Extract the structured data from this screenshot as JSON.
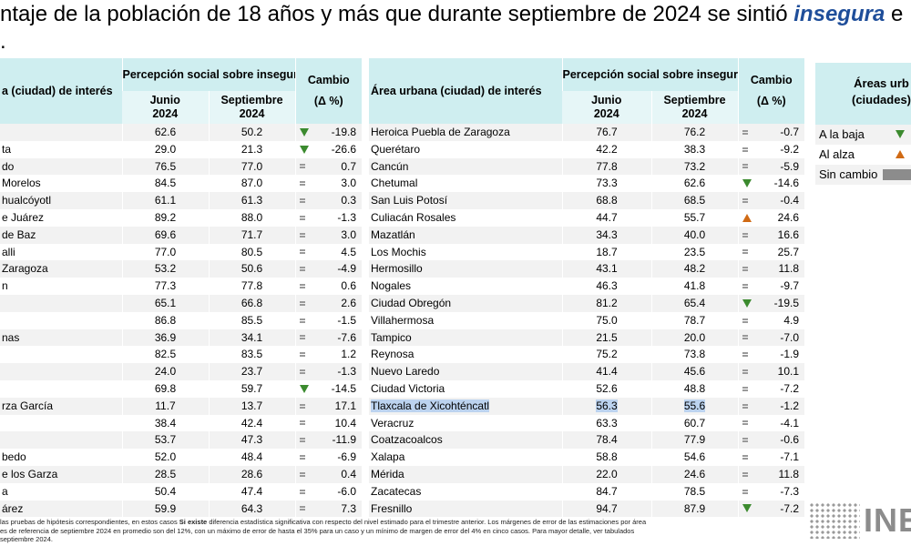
{
  "title": {
    "line1_pre": "ntaje de la población de 18 años y más que durante septiembre de 2024 se sintió ",
    "line1_em": "insegura",
    "line1_post": " e",
    "line2": "."
  },
  "headers": {
    "city_left": "a (ciudad) de interés",
    "city_right": "Área urbana (ciudad) de interés",
    "perception": "Percepción social sobre inseguridad pública",
    "junio": "Junio",
    "septiembre": "Septiembre",
    "year": "2024",
    "change": "Cambio",
    "delta": "(Δ %)"
  },
  "rows": [
    {
      "l_city": "",
      "l_jun": "62.6",
      "l_sep": "50.2",
      "l_ind": "down",
      "l_chg": "-19.8",
      "r_city": "Heroica Puebla de Zaragoza",
      "r_jun": "76.7",
      "r_sep": "76.2",
      "r_ind": "eq",
      "r_chg": "-0.7"
    },
    {
      "l_city": "ta",
      "l_jun": "29.0",
      "l_sep": "21.3",
      "l_ind": "down",
      "l_chg": "-26.6",
      "r_city": "Querétaro",
      "r_jun": "42.2",
      "r_sep": "38.3",
      "r_ind": "eq",
      "r_chg": "-9.2"
    },
    {
      "l_city": "do",
      "l_jun": "76.5",
      "l_sep": "77.0",
      "l_ind": "eq",
      "l_chg": "0.7",
      "r_city": "Cancún",
      "r_jun": "77.8",
      "r_sep": "73.2",
      "r_ind": "eq",
      "r_chg": "-5.9"
    },
    {
      "l_city": "Morelos",
      "l_jun": "84.5",
      "l_sep": "87.0",
      "l_ind": "eq",
      "l_chg": "3.0",
      "r_city": "Chetumal",
      "r_jun": "73.3",
      "r_sep": "62.6",
      "r_ind": "down",
      "r_chg": "-14.6"
    },
    {
      "l_city": "hualcóyotl",
      "l_jun": "61.1",
      "l_sep": "61.3",
      "l_ind": "eq",
      "l_chg": "0.3",
      "r_city": "San Luis Potosí",
      "r_jun": "68.8",
      "r_sep": "68.5",
      "r_ind": "eq",
      "r_chg": "-0.4"
    },
    {
      "l_city": "e Juárez",
      "l_jun": "89.2",
      "l_sep": "88.0",
      "l_ind": "eq",
      "l_chg": "-1.3",
      "r_city": "Culiacán Rosales",
      "r_jun": "44.7",
      "r_sep": "55.7",
      "r_ind": "up",
      "r_chg": "24.6"
    },
    {
      "l_city": "de Baz",
      "l_jun": "69.6",
      "l_sep": "71.7",
      "l_ind": "eq",
      "l_chg": "3.0",
      "r_city": "Mazatlán",
      "r_jun": "34.3",
      "r_sep": "40.0",
      "r_ind": "eq",
      "r_chg": "16.6"
    },
    {
      "l_city": "alli",
      "l_jun": "77.0",
      "l_sep": "80.5",
      "l_ind": "eq",
      "l_chg": "4.5",
      "r_city": "Los Mochis",
      "r_jun": "18.7",
      "r_sep": "23.5",
      "r_ind": "eq",
      "r_chg": "25.7"
    },
    {
      "l_city": "Zaragoza",
      "l_jun": "53.2",
      "l_sep": "50.6",
      "l_ind": "eq",
      "l_chg": "-4.9",
      "r_city": "Hermosillo",
      "r_jun": "43.1",
      "r_sep": "48.2",
      "r_ind": "eq",
      "r_chg": "11.8"
    },
    {
      "l_city": "n",
      "l_jun": "77.3",
      "l_sep": "77.8",
      "l_ind": "eq",
      "l_chg": "0.6",
      "r_city": "Nogales",
      "r_jun": "46.3",
      "r_sep": "41.8",
      "r_ind": "eq",
      "r_chg": "-9.7"
    },
    {
      "l_city": "",
      "l_jun": "65.1",
      "l_sep": "66.8",
      "l_ind": "eq",
      "l_chg": "2.6",
      "r_city": "Ciudad Obregón",
      "r_jun": "81.2",
      "r_sep": "65.4",
      "r_ind": "down",
      "r_chg": "-19.5"
    },
    {
      "l_city": "",
      "l_jun": "86.8",
      "l_sep": "85.5",
      "l_ind": "eq",
      "l_chg": "-1.5",
      "r_city": "Villahermosa",
      "r_jun": "75.0",
      "r_sep": "78.7",
      "r_ind": "eq",
      "r_chg": "4.9"
    },
    {
      "l_city": "nas",
      "l_jun": "36.9",
      "l_sep": "34.1",
      "l_ind": "eq",
      "l_chg": "-7.6",
      "r_city": "Tampico",
      "r_jun": "21.5",
      "r_sep": "20.0",
      "r_ind": "eq",
      "r_chg": "-7.0"
    },
    {
      "l_city": "",
      "l_jun": "82.5",
      "l_sep": "83.5",
      "l_ind": "eq",
      "l_chg": "1.2",
      "r_city": "Reynosa",
      "r_jun": "75.2",
      "r_sep": "73.8",
      "r_ind": "eq",
      "r_chg": "-1.9"
    },
    {
      "l_city": "",
      "l_jun": "24.0",
      "l_sep": "23.7",
      "l_ind": "eq",
      "l_chg": "-1.3",
      "r_city": "Nuevo Laredo",
      "r_jun": "41.4",
      "r_sep": "45.6",
      "r_ind": "eq",
      "r_chg": "10.1"
    },
    {
      "l_city": "",
      "l_jun": "69.8",
      "l_sep": "59.7",
      "l_ind": "down",
      "l_chg": "-14.5",
      "r_city": "Ciudad Victoria",
      "r_jun": "52.6",
      "r_sep": "48.8",
      "r_ind": "eq",
      "r_chg": "-7.2"
    },
    {
      "l_city": "rza García",
      "l_jun": "11.7",
      "l_sep": "13.7",
      "l_ind": "eq",
      "l_chg": "17.1",
      "r_city": "Tlaxcala de Xicohténcatl",
      "r_jun": "56.3",
      "r_sep": "55.6",
      "r_ind": "eq",
      "r_chg": "-1.2",
      "highlight": true
    },
    {
      "l_city": "",
      "l_jun": "38.4",
      "l_sep": "42.4",
      "l_ind": "eq",
      "l_chg": "10.4",
      "r_city": "Veracruz",
      "r_jun": "63.3",
      "r_sep": "60.7",
      "r_ind": "eq",
      "r_chg": "-4.1"
    },
    {
      "l_city": "",
      "l_jun": "53.7",
      "l_sep": "47.3",
      "l_ind": "eq",
      "l_chg": "-11.9",
      "r_city": "Coatzacoalcos",
      "r_jun": "78.4",
      "r_sep": "77.9",
      "r_ind": "eq",
      "r_chg": "-0.6"
    },
    {
      "l_city": "bedo",
      "l_jun": "52.0",
      "l_sep": "48.4",
      "l_ind": "eq",
      "l_chg": "-6.9",
      "r_city": "Xalapa",
      "r_jun": "58.8",
      "r_sep": "54.6",
      "r_ind": "eq",
      "r_chg": "-7.1"
    },
    {
      "l_city": "e los Garza",
      "l_jun": "28.5",
      "l_sep": "28.6",
      "l_ind": "eq",
      "l_chg": "0.4",
      "r_city": "Mérida",
      "r_jun": "22.0",
      "r_sep": "24.6",
      "r_ind": "eq",
      "r_chg": "11.8"
    },
    {
      "l_city": "a",
      "l_jun": "50.4",
      "l_sep": "47.4",
      "l_ind": "eq",
      "l_chg": "-6.0",
      "r_city": "Zacatecas",
      "r_jun": "84.7",
      "r_sep": "78.5",
      "r_ind": "eq",
      "r_chg": "-7.3"
    },
    {
      "l_city": "árez",
      "l_jun": "59.9",
      "l_sep": "64.3",
      "l_ind": "eq",
      "l_chg": "7.3",
      "r_city": "Fresnillo",
      "r_jun": "94.7",
      "r_sep": "87.9",
      "r_ind": "down",
      "r_chg": "-7.2"
    }
  ],
  "legend": {
    "title": "Áreas urb (ciudades)",
    "down": "A la baja",
    "up": "Al alza",
    "same": "Sin cambio"
  },
  "footnote": {
    "line1_pre": "las pruebas de hipótesis correspondientes, en estos casos ",
    "line1_bold": "Si existe",
    "line1_post": " diferencia estadística significativa con respecto del nivel estimado para el trimestre anterior. Los márgenes de error de las estimaciones por área",
    "line2": "es de referencia de septiembre 2024 en promedio son del 12%, con un máximo de error de hasta el 35% para un caso y un mínimo de margen de error del 4% en cinco casos. Para mayor detalle, ver tabulados",
    "line3": "septiembre 2024."
  },
  "logo": {
    "text": "INE"
  },
  "colors": {
    "header_bg": "#cfeef0",
    "down": "#3b8a2e",
    "up": "#d06a14",
    "same": "#8c8c8c",
    "title_em": "#1f4e9a"
  }
}
